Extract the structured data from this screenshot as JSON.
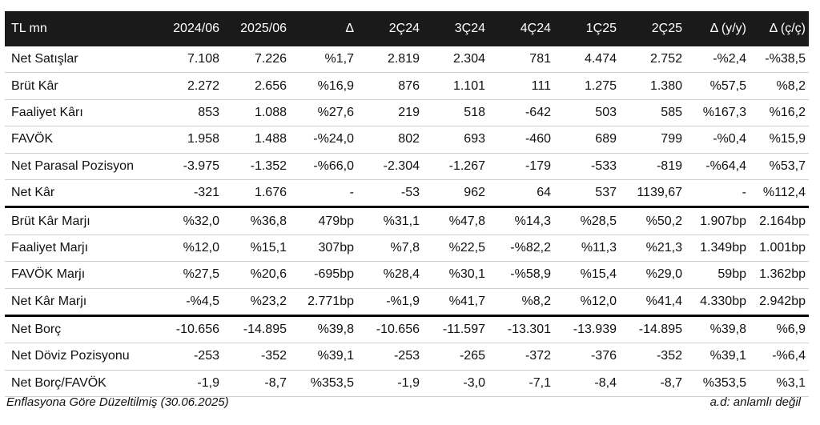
{
  "header": [
    "TL mn",
    "2024/06",
    "2025/06",
    "Δ",
    "2Ç24",
    "3Ç24",
    "4Ç24",
    "1Ç25",
    "2Ç25",
    "Δ (y/y)",
    "Δ (ç/ç)"
  ],
  "rows": [
    [
      "Net Satışlar",
      "7.108",
      "7.226",
      "%1,7",
      "2.819",
      "2.304",
      "781",
      "4.474",
      "2.752",
      "-%2,4",
      "-%38,5"
    ],
    [
      "Brüt Kâr",
      "2.272",
      "2.656",
      "%16,9",
      "876",
      "1.101",
      "111",
      "1.275",
      "1.380",
      "%57,5",
      "%8,2"
    ],
    [
      "Faaliyet Kârı",
      "853",
      "1.088",
      "%27,6",
      "219",
      "518",
      "-642",
      "503",
      "585",
      "%167,3",
      "%16,2"
    ],
    [
      "FAVÖK",
      "1.958",
      "1.488",
      "-%24,0",
      "802",
      "693",
      "-460",
      "689",
      "799",
      "-%0,4",
      "%15,9"
    ],
    [
      "Net Parasal Pozisyon",
      "-3.975",
      "-1.352",
      "-%66,0",
      "-2.304",
      "-1.267",
      "-179",
      "-533",
      "-819",
      "-%64,4",
      "%53,7"
    ],
    [
      "Net Kâr",
      "-321",
      "1.676",
      "-",
      "-53",
      "962",
      "64",
      "537",
      "1139,67",
      "-",
      "%112,4"
    ],
    [
      "Brüt Kâr Marjı",
      "%32,0",
      "%36,8",
      "479bp",
      "%31,1",
      "%47,8",
      "%14,3",
      "%28,5",
      "%50,2",
      "1.907bp",
      "2.164bp"
    ],
    [
      "Faaliyet Marjı",
      "%12,0",
      "%15,1",
      "307bp",
      "%7,8",
      "%22,5",
      "-%82,2",
      "%11,3",
      "%21,3",
      "1.349bp",
      "1.001bp"
    ],
    [
      "FAVÖK Marjı",
      "%27,5",
      "%20,6",
      "-695bp",
      "%28,4",
      "%30,1",
      "-%58,9",
      "%15,4",
      "%29,0",
      "59bp",
      "1.362bp"
    ],
    [
      "Net Kâr Marjı",
      "-%4,5",
      "%23,2",
      "2.771bp",
      "-%1,9",
      "%41,7",
      "%8,2",
      "%12,0",
      "%41,4",
      "4.330bp",
      "2.942bp"
    ],
    [
      "Net Borç",
      "-10.656",
      "-14.895",
      "%39,8",
      "-10.656",
      "-11.597",
      "-13.301",
      "-13.939",
      "-14.895",
      "%39,8",
      "%6,9"
    ],
    [
      "Net Döviz Pozisyonu",
      "-253",
      "-352",
      "%39,1",
      "-253",
      "-265",
      "-372",
      "-376",
      "-352",
      "%39,1",
      "-%6,4"
    ],
    [
      "Net Borç/FAVÖK",
      "-1,9",
      "-8,7",
      "%353,5",
      "-1,9",
      "-3,0",
      "-7,1",
      "-8,4",
      "-8,7",
      "%353,5",
      "%3,1"
    ]
  ],
  "footer": {
    "left": "Enflasyona Göre Düzeltilmiş (30.06.2025)",
    "right": "a.d: anlamlı değil"
  }
}
